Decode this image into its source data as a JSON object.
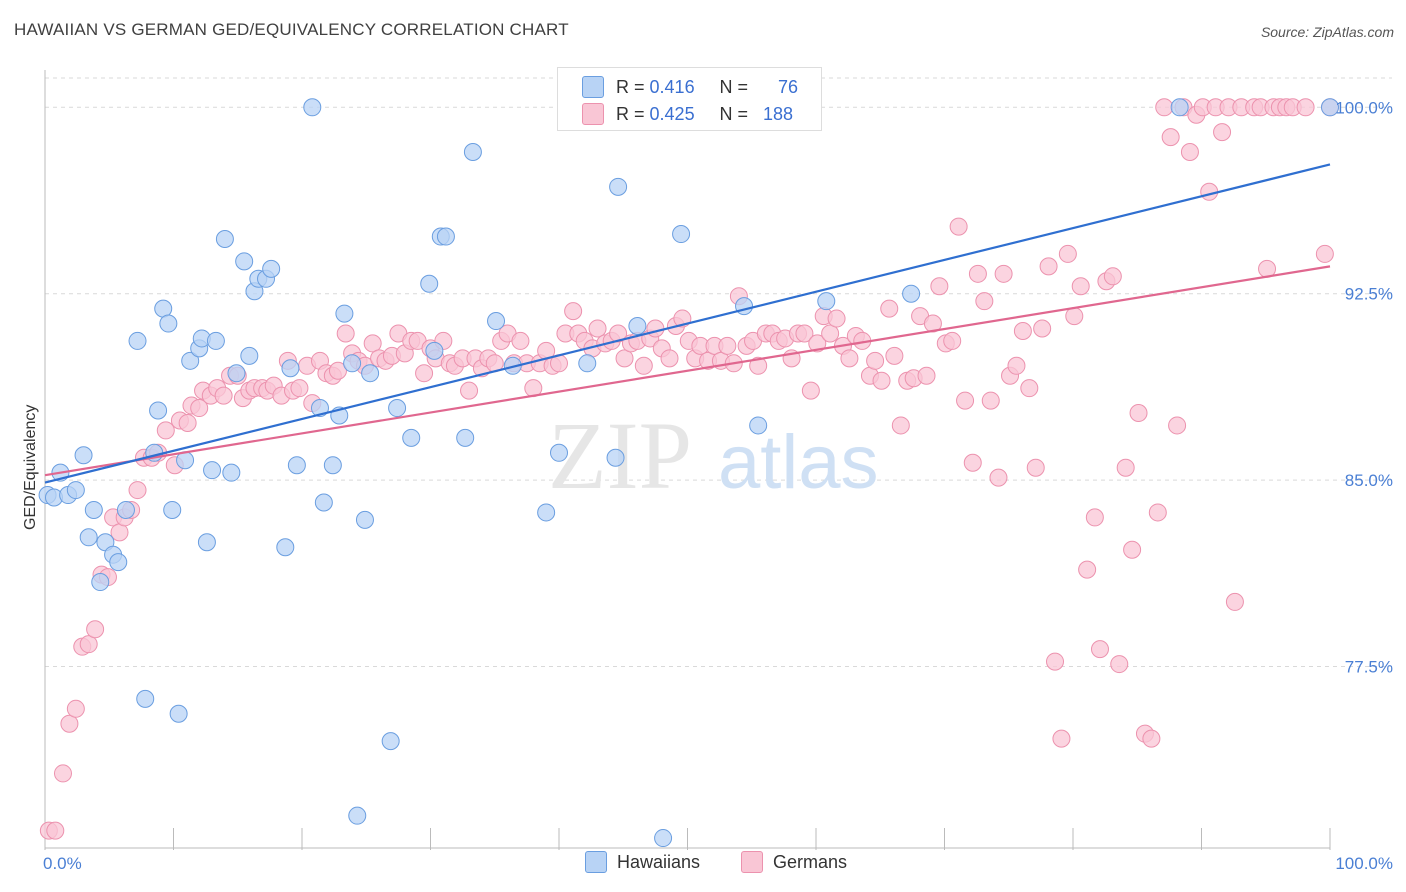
{
  "title": "HAWAIIAN VS GERMAN GED/EQUIVALENCY CORRELATION CHART",
  "source": "Source: ZipAtlas.com",
  "watermark": {
    "zip": "ZIP",
    "atlas": "atlas"
  },
  "colors": {
    "hawaiians_fill": "#b8d3f5",
    "hawaiians_stroke": "#6a9ee0",
    "hawaiians_line": "#2f6fd0",
    "germans_fill": "#f9c6d5",
    "germans_stroke": "#ec92ae",
    "germans_line": "#e0678f",
    "tick_text": "#4a7fd4",
    "grid": "#d9d9d9"
  },
  "stats": {
    "hawaiians": {
      "r_label": "R =",
      "r_value": "0.416",
      "n_label": "N =",
      "n_value": "76"
    },
    "germans": {
      "r_label": "R =",
      "r_value": "0.425",
      "n_label": "N =",
      "n_value": "188"
    }
  },
  "legend": {
    "hawaiians": "Hawaiians",
    "germans": "Germans"
  },
  "chart_data": {
    "type": "scatter",
    "title": "HAWAIIAN VS GERMAN GED/EQUIVALENCY CORRELATION CHART",
    "xlabel": "",
    "ylabel": "GED/Equivalency",
    "xlim": [
      0,
      100
    ],
    "ylim": [
      70.2,
      101.5
    ],
    "x_tick_labels": [
      "0.0%",
      "100.0%"
    ],
    "y_ticks": [
      77.5,
      85.0,
      92.5,
      100.0
    ],
    "y_tick_labels": [
      "77.5%",
      "85.0%",
      "92.5%",
      "100.0%"
    ],
    "grid": "horizontal dashed",
    "legend_position": "bottom-center",
    "series": [
      {
        "name": "Hawaiians",
        "trendline": {
          "x": [
            0,
            100
          ],
          "y": [
            84.9,
            97.7
          ]
        },
        "points": [
          [
            0.2,
            84.4
          ],
          [
            0.7,
            84.3
          ],
          [
            1.2,
            85.3
          ],
          [
            1.8,
            84.4
          ],
          [
            2.4,
            84.6
          ],
          [
            3.0,
            86.0
          ],
          [
            3.4,
            82.7
          ],
          [
            3.8,
            83.8
          ],
          [
            4.3,
            80.9
          ],
          [
            4.7,
            82.5
          ],
          [
            5.3,
            82.0
          ],
          [
            5.7,
            81.7
          ],
          [
            6.3,
            83.8
          ],
          [
            7.2,
            90.6
          ],
          [
            7.8,
            76.2
          ],
          [
            8.5,
            86.1
          ],
          [
            8.8,
            87.8
          ],
          [
            9.2,
            91.9
          ],
          [
            9.6,
            91.3
          ],
          [
            9.9,
            83.8
          ],
          [
            10.4,
            75.6
          ],
          [
            10.9,
            85.8
          ],
          [
            11.3,
            89.8
          ],
          [
            12.0,
            90.3
          ],
          [
            12.2,
            90.7
          ],
          [
            12.6,
            82.5
          ],
          [
            13.0,
            85.4
          ],
          [
            13.3,
            90.6
          ],
          [
            14.0,
            94.7
          ],
          [
            14.5,
            85.3
          ],
          [
            14.9,
            89.3
          ],
          [
            15.5,
            93.8
          ],
          [
            15.9,
            90.0
          ],
          [
            16.3,
            92.6
          ],
          [
            16.6,
            93.1
          ],
          [
            17.2,
            93.1
          ],
          [
            17.6,
            93.5
          ],
          [
            18.7,
            82.3
          ],
          [
            19.1,
            89.5
          ],
          [
            19.6,
            85.6
          ],
          [
            20.8,
            100.0
          ],
          [
            21.4,
            87.9
          ],
          [
            21.7,
            84.1
          ],
          [
            22.4,
            85.6
          ],
          [
            22.9,
            87.6
          ],
          [
            23.3,
            91.7
          ],
          [
            23.9,
            89.7
          ],
          [
            24.3,
            71.5
          ],
          [
            24.9,
            83.4
          ],
          [
            25.3,
            89.3
          ],
          [
            26.9,
            74.5
          ],
          [
            27.4,
            87.9
          ],
          [
            28.5,
            86.7
          ],
          [
            29.9,
            92.9
          ],
          [
            30.3,
            90.2
          ],
          [
            30.8,
            94.8
          ],
          [
            31.2,
            94.8
          ],
          [
            32.7,
            86.7
          ],
          [
            33.3,
            98.2
          ],
          [
            35.1,
            91.4
          ],
          [
            36.4,
            89.6
          ],
          [
            39.0,
            83.7
          ],
          [
            40.0,
            86.1
          ],
          [
            42.2,
            89.7
          ],
          [
            44.4,
            85.9
          ],
          [
            44.6,
            96.8
          ],
          [
            46.1,
            91.2
          ],
          [
            48.1,
            70.6
          ],
          [
            49.5,
            94.9
          ],
          [
            54.4,
            92.0
          ],
          [
            55.5,
            87.2
          ],
          [
            60.8,
            92.2
          ],
          [
            67.4,
            92.5
          ],
          [
            88.3,
            100.0
          ],
          [
            100.0,
            100.0
          ]
        ]
      },
      {
        "name": "Germans",
        "trendline": {
          "x": [
            0,
            100
          ],
          "y": [
            85.2,
            93.6
          ]
        },
        "points": [
          [
            0.3,
            70.9
          ],
          [
            0.8,
            70.9
          ],
          [
            1.4,
            73.2
          ],
          [
            1.9,
            75.2
          ],
          [
            2.4,
            75.8
          ],
          [
            2.9,
            78.3
          ],
          [
            3.4,
            78.4
          ],
          [
            3.9,
            79.0
          ],
          [
            4.4,
            81.2
          ],
          [
            4.9,
            81.1
          ],
          [
            5.3,
            83.5
          ],
          [
            5.8,
            82.9
          ],
          [
            6.2,
            83.5
          ],
          [
            6.7,
            83.8
          ],
          [
            7.2,
            84.6
          ],
          [
            7.7,
            85.9
          ],
          [
            8.3,
            85.9
          ],
          [
            8.8,
            86.1
          ],
          [
            9.4,
            87.0
          ],
          [
            10.1,
            85.6
          ],
          [
            10.5,
            87.4
          ],
          [
            11.1,
            87.3
          ],
          [
            11.4,
            88.0
          ],
          [
            12.0,
            87.9
          ],
          [
            12.3,
            88.6
          ],
          [
            12.9,
            88.4
          ],
          [
            13.4,
            88.7
          ],
          [
            13.9,
            88.4
          ],
          [
            14.4,
            89.2
          ],
          [
            15.0,
            89.2
          ],
          [
            15.4,
            88.3
          ],
          [
            15.9,
            88.6
          ],
          [
            16.3,
            88.7
          ],
          [
            16.9,
            88.7
          ],
          [
            17.3,
            88.6
          ],
          [
            17.8,
            88.8
          ],
          [
            18.4,
            88.4
          ],
          [
            18.9,
            89.8
          ],
          [
            19.3,
            88.6
          ],
          [
            19.8,
            88.7
          ],
          [
            20.4,
            89.6
          ],
          [
            20.8,
            88.1
          ],
          [
            21.4,
            89.8
          ],
          [
            21.9,
            89.3
          ],
          [
            22.4,
            89.2
          ],
          [
            22.8,
            89.4
          ],
          [
            23.4,
            90.9
          ],
          [
            23.9,
            90.1
          ],
          [
            24.4,
            89.8
          ],
          [
            24.9,
            89.6
          ],
          [
            25.5,
            90.5
          ],
          [
            26.0,
            89.9
          ],
          [
            26.5,
            89.8
          ],
          [
            27.0,
            90.0
          ],
          [
            27.5,
            90.9
          ],
          [
            28.0,
            90.1
          ],
          [
            28.5,
            90.6
          ],
          [
            29.0,
            90.6
          ],
          [
            29.5,
            89.3
          ],
          [
            30.0,
            90.3
          ],
          [
            30.4,
            89.9
          ],
          [
            31.0,
            90.6
          ],
          [
            31.5,
            89.7
          ],
          [
            31.9,
            89.6
          ],
          [
            32.5,
            89.9
          ],
          [
            33.0,
            88.6
          ],
          [
            33.5,
            89.9
          ],
          [
            34.0,
            89.5
          ],
          [
            34.5,
            89.9
          ],
          [
            35.0,
            89.7
          ],
          [
            35.5,
            90.6
          ],
          [
            36.0,
            90.9
          ],
          [
            36.5,
            89.7
          ],
          [
            37.0,
            90.6
          ],
          [
            37.5,
            89.7
          ],
          [
            38.0,
            88.7
          ],
          [
            38.5,
            89.7
          ],
          [
            39.0,
            90.2
          ],
          [
            39.5,
            89.6
          ],
          [
            40.0,
            89.7
          ],
          [
            40.5,
            90.9
          ],
          [
            41.1,
            91.8
          ],
          [
            41.5,
            90.9
          ],
          [
            42.0,
            90.6
          ],
          [
            42.6,
            90.3
          ],
          [
            43.0,
            91.1
          ],
          [
            43.6,
            90.5
          ],
          [
            44.1,
            90.6
          ],
          [
            44.6,
            90.9
          ],
          [
            45.1,
            89.9
          ],
          [
            45.6,
            90.5
          ],
          [
            46.1,
            90.6
          ],
          [
            46.6,
            89.6
          ],
          [
            47.1,
            90.7
          ],
          [
            47.5,
            91.1
          ],
          [
            48.0,
            90.3
          ],
          [
            48.6,
            89.9
          ],
          [
            49.1,
            91.2
          ],
          [
            49.6,
            91.5
          ],
          [
            50.1,
            90.6
          ],
          [
            50.6,
            89.9
          ],
          [
            51.0,
            90.4
          ],
          [
            51.6,
            89.8
          ],
          [
            52.1,
            90.4
          ],
          [
            52.6,
            89.8
          ],
          [
            53.1,
            90.4
          ],
          [
            53.6,
            89.7
          ],
          [
            54.0,
            92.4
          ],
          [
            54.6,
            90.4
          ],
          [
            55.1,
            90.6
          ],
          [
            55.5,
            89.6
          ],
          [
            56.1,
            90.9
          ],
          [
            56.6,
            90.9
          ],
          [
            57.1,
            90.6
          ],
          [
            57.6,
            90.7
          ],
          [
            58.1,
            89.9
          ],
          [
            58.6,
            90.9
          ],
          [
            59.1,
            90.9
          ],
          [
            59.6,
            88.6
          ],
          [
            60.1,
            90.5
          ],
          [
            60.6,
            91.6
          ],
          [
            61.1,
            90.9
          ],
          [
            61.6,
            91.5
          ],
          [
            62.1,
            90.4
          ],
          [
            62.6,
            89.9
          ],
          [
            63.1,
            90.8
          ],
          [
            63.6,
            90.6
          ],
          [
            64.2,
            89.2
          ],
          [
            64.6,
            89.8
          ],
          [
            65.1,
            89.0
          ],
          [
            65.7,
            91.9
          ],
          [
            66.1,
            90.0
          ],
          [
            66.6,
            87.2
          ],
          [
            67.1,
            89.0
          ],
          [
            67.6,
            89.1
          ],
          [
            68.1,
            91.6
          ],
          [
            68.6,
            89.2
          ],
          [
            69.1,
            91.3
          ],
          [
            69.6,
            92.8
          ],
          [
            70.1,
            90.5
          ],
          [
            70.6,
            90.6
          ],
          [
            71.1,
            95.2
          ],
          [
            71.6,
            88.2
          ],
          [
            72.2,
            85.7
          ],
          [
            72.6,
            93.3
          ],
          [
            73.1,
            92.2
          ],
          [
            73.6,
            88.2
          ],
          [
            74.2,
            85.1
          ],
          [
            74.6,
            93.3
          ],
          [
            75.1,
            89.2
          ],
          [
            75.6,
            89.6
          ],
          [
            76.1,
            91.0
          ],
          [
            76.6,
            88.7
          ],
          [
            77.1,
            85.5
          ],
          [
            77.6,
            91.1
          ],
          [
            78.1,
            93.6
          ],
          [
            78.6,
            77.7
          ],
          [
            79.1,
            74.6
          ],
          [
            79.6,
            94.1
          ],
          [
            80.1,
            91.6
          ],
          [
            80.6,
            92.8
          ],
          [
            81.1,
            81.4
          ],
          [
            81.7,
            83.5
          ],
          [
            82.1,
            78.2
          ],
          [
            82.6,
            93.0
          ],
          [
            83.1,
            93.2
          ],
          [
            83.6,
            77.6
          ],
          [
            84.1,
            85.5
          ],
          [
            84.6,
            82.2
          ],
          [
            85.1,
            87.7
          ],
          [
            85.6,
            74.8
          ],
          [
            86.1,
            74.6
          ],
          [
            86.6,
            83.7
          ],
          [
            87.1,
            100.0
          ],
          [
            87.6,
            98.8
          ],
          [
            88.1,
            87.2
          ],
          [
            88.6,
            100.0
          ],
          [
            89.1,
            98.2
          ],
          [
            89.6,
            99.7
          ],
          [
            90.1,
            100.0
          ],
          [
            90.6,
            96.6
          ],
          [
            91.1,
            100.0
          ],
          [
            91.6,
            99.0
          ],
          [
            92.1,
            100.0
          ],
          [
            92.6,
            80.1
          ],
          [
            93.1,
            100.0
          ],
          [
            94.1,
            100.0
          ],
          [
            94.6,
            100.0
          ],
          [
            95.1,
            93.5
          ],
          [
            95.6,
            100.0
          ],
          [
            96.1,
            100.0
          ],
          [
            96.6,
            100.0
          ],
          [
            97.1,
            100.0
          ],
          [
            98.1,
            100.0
          ],
          [
            99.6,
            94.1
          ],
          [
            100.0,
            100.0
          ]
        ]
      }
    ]
  }
}
